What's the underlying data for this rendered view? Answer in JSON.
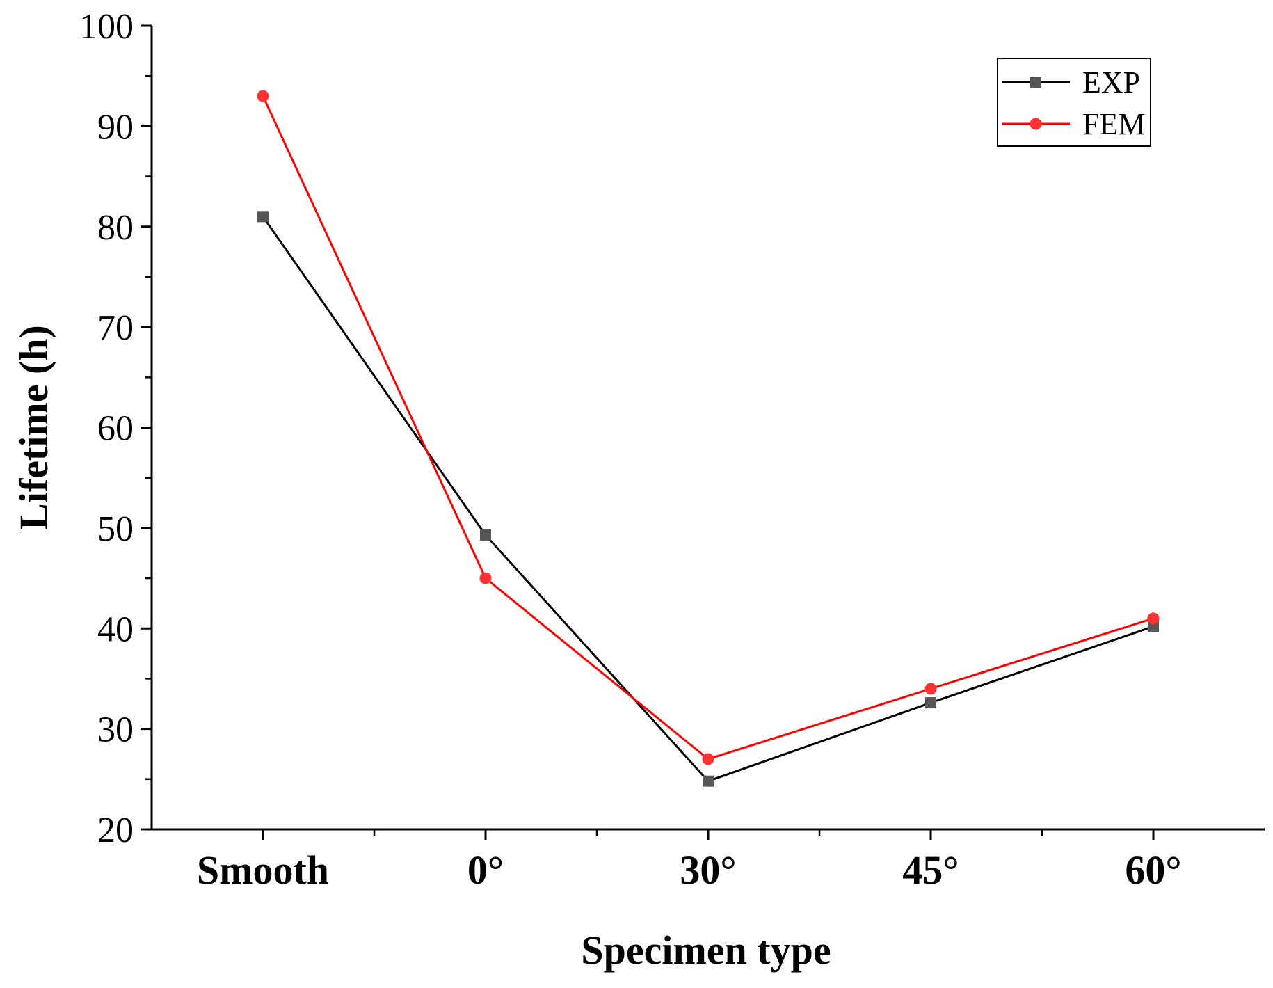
{
  "chart_data": {
    "type": "line",
    "title": "",
    "xlabel": "Specimen type",
    "ylabel": "Lifetime (h)",
    "categories": [
      "Smooth",
      "0°",
      "30°",
      "45°",
      "60°"
    ],
    "ylim": [
      20,
      100
    ],
    "yticks": [
      20,
      30,
      40,
      50,
      60,
      70,
      80,
      90,
      100
    ],
    "grid": false,
    "legend_position": "top-right",
    "series": [
      {
        "name": "EXP",
        "color": "#000000",
        "marker_color": "#555555",
        "marker": "square",
        "values": [
          81,
          49.3,
          24.8,
          32.6,
          40.2
        ]
      },
      {
        "name": "FEM",
        "color": "#ff0000",
        "marker_color": "#ff3333",
        "marker": "circle",
        "values": [
          93,
          45,
          27,
          34,
          41
        ]
      }
    ]
  }
}
